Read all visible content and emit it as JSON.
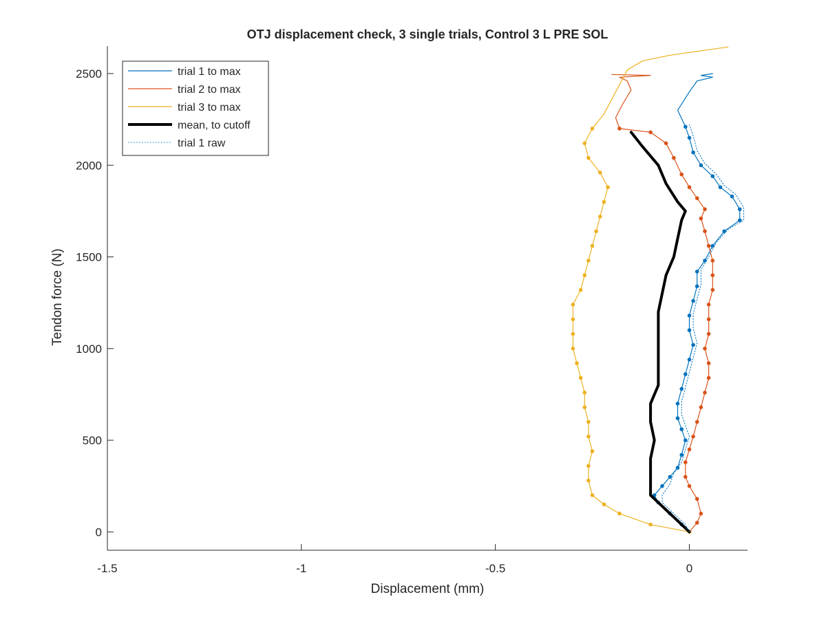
{
  "chart_data": {
    "type": "line",
    "title": "OTJ displacement check, 3 single trials, Control 3 L PRE SOL",
    "xlabel": "Displacement (mm)",
    "ylabel": "Tendon force (N)",
    "xlim": [
      -1.5,
      0.15
    ],
    "ylim": [
      -100,
      2650
    ],
    "xticks": [
      -1.5,
      -1,
      -0.5,
      0
    ],
    "xtick_labels": [
      "-1.5",
      "-1",
      "-0.5",
      "0"
    ],
    "yticks": [
      0,
      500,
      1000,
      1500,
      2000,
      2500
    ],
    "ytick_labels": [
      "0",
      "500",
      "1000",
      "1500",
      "2000",
      "2500"
    ],
    "grid": false,
    "legend_position": "top-left",
    "legend": [
      {
        "label": "trial 1 to max",
        "color": "#0072BD",
        "style": "solid"
      },
      {
        "label": "trial 2 to max",
        "color": "#D95319",
        "style": "solid"
      },
      {
        "label": "trial 3 to max",
        "color": "#EDB120",
        "style": "solid"
      },
      {
        "label": "mean, to cutoff",
        "color": "#000000",
        "style": "thick"
      },
      {
        "label": "trial 1 raw",
        "color": "#0072BD",
        "style": "dotted"
      }
    ],
    "series": [
      {
        "name": "trial 1 to max",
        "color": "#0072BD",
        "points": [
          [
            0,
            0
          ],
          [
            -0.02,
            40
          ],
          [
            -0.05,
            100
          ],
          [
            -0.08,
            160
          ],
          [
            -0.09,
            200
          ],
          [
            -0.07,
            250
          ],
          [
            -0.05,
            300
          ],
          [
            -0.03,
            350
          ],
          [
            -0.02,
            420
          ],
          [
            -0.01,
            500
          ],
          [
            -0.02,
            560
          ],
          [
            -0.03,
            620
          ],
          [
            -0.03,
            700
          ],
          [
            -0.02,
            780
          ],
          [
            -0.01,
            860
          ],
          [
            0.0,
            940
          ],
          [
            0.01,
            1020
          ],
          [
            0.0,
            1100
          ],
          [
            0.0,
            1180
          ],
          [
            0.01,
            1260
          ],
          [
            0.02,
            1340
          ],
          [
            0.02,
            1420
          ],
          [
            0.04,
            1480
          ],
          [
            0.06,
            1560
          ],
          [
            0.09,
            1640
          ],
          [
            0.13,
            1700
          ],
          [
            0.13,
            1760
          ],
          [
            0.11,
            1830
          ],
          [
            0.08,
            1880
          ],
          [
            0.06,
            1940
          ],
          [
            0.03,
            2000
          ],
          [
            0.01,
            2070
          ],
          [
            0.0,
            2150
          ],
          [
            -0.01,
            2210
          ],
          [
            -0.03,
            2300
          ],
          [
            0.0,
            2400
          ],
          [
            0.02,
            2460
          ],
          [
            0.06,
            2480
          ],
          [
            0.03,
            2490
          ],
          [
            0.06,
            2500
          ]
        ]
      },
      {
        "name": "trial 2 to max",
        "color": "#D95319",
        "points": [
          [
            0,
            0
          ],
          [
            0.02,
            50
          ],
          [
            0.03,
            100
          ],
          [
            0.02,
            180
          ],
          [
            0.0,
            250
          ],
          [
            -0.01,
            300
          ],
          [
            -0.01,
            380
          ],
          [
            0.0,
            450
          ],
          [
            0.01,
            520
          ],
          [
            0.02,
            600
          ],
          [
            0.03,
            680
          ],
          [
            0.04,
            760
          ],
          [
            0.05,
            840
          ],
          [
            0.05,
            920
          ],
          [
            0.04,
            1000
          ],
          [
            0.05,
            1080
          ],
          [
            0.05,
            1160
          ],
          [
            0.05,
            1240
          ],
          [
            0.06,
            1320
          ],
          [
            0.06,
            1400
          ],
          [
            0.06,
            1480
          ],
          [
            0.05,
            1560
          ],
          [
            0.04,
            1640
          ],
          [
            0.03,
            1710
          ],
          [
            0.04,
            1760
          ],
          [
            0.02,
            1820
          ],
          [
            0.0,
            1880
          ],
          [
            -0.02,
            1950
          ],
          [
            -0.04,
            2040
          ],
          [
            -0.06,
            2120
          ],
          [
            -0.1,
            2180
          ],
          [
            -0.18,
            2200
          ],
          [
            -0.19,
            2260
          ],
          [
            -0.17,
            2340
          ],
          [
            -0.15,
            2410
          ],
          [
            -0.16,
            2460
          ],
          [
            -0.18,
            2480
          ],
          [
            -0.1,
            2490
          ],
          [
            -0.2,
            2495
          ]
        ]
      },
      {
        "name": "trial 3 to max",
        "color": "#EDB120",
        "points": [
          [
            0,
            0
          ],
          [
            -0.1,
            40
          ],
          [
            -0.18,
            100
          ],
          [
            -0.22,
            150
          ],
          [
            -0.25,
            200
          ],
          [
            -0.26,
            280
          ],
          [
            -0.26,
            360
          ],
          [
            -0.25,
            440
          ],
          [
            -0.26,
            520
          ],
          [
            -0.26,
            600
          ],
          [
            -0.27,
            680
          ],
          [
            -0.27,
            760
          ],
          [
            -0.28,
            840
          ],
          [
            -0.29,
            920
          ],
          [
            -0.3,
            1000
          ],
          [
            -0.3,
            1080
          ],
          [
            -0.3,
            1160
          ],
          [
            -0.3,
            1240
          ],
          [
            -0.28,
            1320
          ],
          [
            -0.27,
            1400
          ],
          [
            -0.26,
            1480
          ],
          [
            -0.25,
            1560
          ],
          [
            -0.24,
            1640
          ],
          [
            -0.23,
            1720
          ],
          [
            -0.22,
            1800
          ],
          [
            -0.21,
            1880
          ],
          [
            -0.23,
            1960
          ],
          [
            -0.26,
            2040
          ],
          [
            -0.27,
            2120
          ],
          [
            -0.25,
            2200
          ],
          [
            -0.22,
            2280
          ],
          [
            -0.2,
            2360
          ],
          [
            -0.18,
            2440
          ],
          [
            -0.16,
            2520
          ],
          [
            -0.12,
            2570
          ],
          [
            -0.05,
            2600
          ],
          [
            0.05,
            2630
          ],
          [
            0.1,
            2645
          ]
        ]
      },
      {
        "name": "mean, to cutoff",
        "color": "#000000",
        "points": [
          [
            0,
            0
          ],
          [
            -0.05,
            100
          ],
          [
            -0.1,
            200
          ],
          [
            -0.1,
            300
          ],
          [
            -0.1,
            400
          ],
          [
            -0.09,
            500
          ],
          [
            -0.1,
            600
          ],
          [
            -0.1,
            700
          ],
          [
            -0.08,
            800
          ],
          [
            -0.08,
            900
          ],
          [
            -0.08,
            1000
          ],
          [
            -0.08,
            1100
          ],
          [
            -0.08,
            1200
          ],
          [
            -0.07,
            1300
          ],
          [
            -0.06,
            1400
          ],
          [
            -0.04,
            1500
          ],
          [
            -0.03,
            1600
          ],
          [
            -0.02,
            1700
          ],
          [
            -0.01,
            1750
          ],
          [
            -0.03,
            1800
          ],
          [
            -0.06,
            1900
          ],
          [
            -0.08,
            2000
          ],
          [
            -0.12,
            2100
          ],
          [
            -0.15,
            2180
          ]
        ]
      },
      {
        "name": "trial 1 raw",
        "color": "#0072BD",
        "points": [
          [
            0,
            0
          ],
          [
            -0.01,
            40
          ],
          [
            -0.04,
            100
          ],
          [
            -0.07,
            160
          ],
          [
            -0.07,
            200
          ],
          [
            -0.05,
            260
          ],
          [
            -0.04,
            320
          ],
          [
            -0.02,
            380
          ],
          [
            -0.01,
            450
          ],
          [
            0.0,
            520
          ],
          [
            -0.01,
            580
          ],
          [
            -0.02,
            640
          ],
          [
            -0.02,
            710
          ],
          [
            -0.01,
            790
          ],
          [
            0.0,
            870
          ],
          [
            0.01,
            950
          ],
          [
            0.02,
            1030
          ],
          [
            0.01,
            1110
          ],
          [
            0.01,
            1190
          ],
          [
            0.02,
            1270
          ],
          [
            0.03,
            1350
          ],
          [
            0.03,
            1430
          ],
          [
            0.05,
            1500
          ],
          [
            0.07,
            1580
          ],
          [
            0.1,
            1650
          ],
          [
            0.14,
            1700
          ],
          [
            0.14,
            1770
          ],
          [
            0.12,
            1840
          ],
          [
            0.09,
            1890
          ],
          [
            0.07,
            1950
          ],
          [
            0.04,
            2010
          ],
          [
            0.02,
            2080
          ],
          [
            0.01,
            2160
          ],
          [
            0.0,
            2220
          ]
        ]
      }
    ]
  }
}
